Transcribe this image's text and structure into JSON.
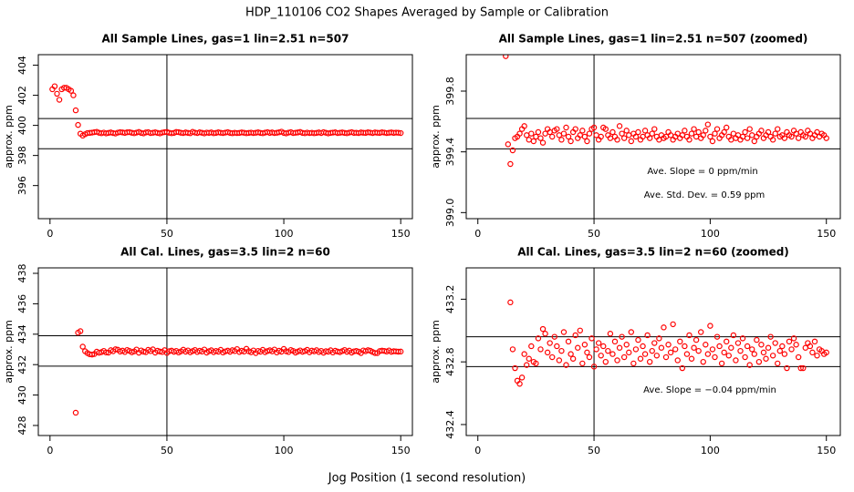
{
  "title": "HDP_110106  CO2 Shapes Averaged by Sample or Calibration",
  "xlabel": "Jog Position (1 second resolution)",
  "chart_data": [
    {
      "type": "scatter",
      "title": "All Sample Lines, gas=1 lin=2.51 n=507",
      "ylabel": "approx. ppm",
      "color": "#ff0000",
      "xlim": [
        -5,
        155
      ],
      "ylim": [
        393.8,
        404.7
      ],
      "xticks": [
        0,
        50,
        100,
        150
      ],
      "yticks": [
        396,
        398,
        400,
        402,
        404
      ],
      "hlines": [
        400.45,
        398.45
      ],
      "vlines": [
        50
      ],
      "annotations": [],
      "x": [
        1,
        2,
        3,
        4,
        5,
        6,
        7,
        8,
        9,
        10,
        11,
        12,
        13,
        14,
        15,
        16,
        17,
        18,
        19,
        20,
        21,
        22,
        23,
        24,
        25,
        26,
        27,
        28,
        29,
        30,
        31,
        32,
        33,
        34,
        35,
        36,
        37,
        38,
        39,
        40,
        41,
        42,
        43,
        44,
        45,
        46,
        47,
        48,
        49,
        50,
        51,
        52,
        53,
        54,
        55,
        56,
        57,
        58,
        59,
        60,
        61,
        62,
        63,
        64,
        65,
        66,
        67,
        68,
        69,
        70,
        71,
        72,
        73,
        74,
        75,
        76,
        77,
        78,
        79,
        80,
        81,
        82,
        83,
        84,
        85,
        86,
        87,
        88,
        89,
        90,
        91,
        92,
        93,
        94,
        95,
        96,
        97,
        98,
        99,
        100,
        101,
        102,
        103,
        104,
        105,
        106,
        107,
        108,
        109,
        110,
        111,
        112,
        113,
        114,
        115,
        116,
        117,
        118,
        119,
        120,
        121,
        122,
        123,
        124,
        125,
        126,
        127,
        128,
        129,
        130,
        131,
        132,
        133,
        134,
        135,
        136,
        137,
        138,
        139,
        140,
        141,
        142,
        143,
        144,
        145,
        146,
        147,
        148,
        149,
        150
      ],
      "values": [
        402.4,
        402.6,
        402.1,
        401.7,
        402.4,
        402.5,
        402.5,
        402.4,
        402.3,
        402.0,
        401.0,
        400.03,
        399.45,
        399.32,
        399.41,
        399.49,
        399.5,
        399.52,
        399.55,
        399.57,
        399.51,
        399.48,
        399.52,
        399.47,
        399.5,
        399.53,
        399.49,
        399.46,
        399.52,
        399.55,
        399.53,
        399.5,
        399.54,
        399.55,
        399.51,
        399.48,
        399.52,
        399.56,
        399.5,
        399.47,
        399.53,
        399.55,
        399.49,
        399.51,
        399.54,
        399.5,
        399.47,
        399.52,
        399.55,
        399.56,
        399.51,
        399.48,
        399.5,
        399.56,
        399.55,
        399.51,
        399.49,
        399.53,
        399.5,
        399.48,
        399.57,
        399.52,
        399.49,
        399.54,
        399.51,
        399.47,
        399.52,
        399.5,
        399.53,
        399.48,
        399.5,
        399.54,
        399.51,
        399.49,
        399.52,
        399.55,
        399.5,
        399.48,
        399.51,
        399.49,
        399.5,
        399.53,
        399.51,
        399.48,
        399.5,
        399.52,
        399.49,
        399.51,
        399.54,
        399.5,
        399.48,
        399.52,
        399.55,
        399.5,
        399.53,
        399.49,
        399.51,
        399.54,
        399.58,
        399.5,
        399.47,
        399.52,
        399.55,
        399.49,
        399.51,
        399.53,
        399.56,
        399.5,
        399.48,
        399.52,
        399.49,
        399.51,
        399.48,
        399.5,
        399.53,
        399.49,
        399.55,
        399.51,
        399.47,
        399.5,
        399.52,
        399.54,
        399.49,
        399.51,
        399.53,
        399.5,
        399.48,
        399.52,
        399.55,
        399.5,
        399.51,
        399.49,
        399.53,
        399.51,
        399.5,
        399.54,
        399.52,
        399.49,
        399.53,
        399.51,
        399.5,
        399.54,
        399.52,
        399.49,
        399.51,
        399.53,
        399.5,
        399.52,
        399.51,
        399.49
      ]
    },
    {
      "type": "scatter",
      "title": "All Sample Lines, gas=1 lin=2.51 n=507 (zoomed)",
      "ylabel": "approx. ppm",
      "color": "#ff0000",
      "xlim": [
        -5,
        156
      ],
      "ylim": [
        398.96,
        400.04
      ],
      "xticks": [
        0,
        50,
        100,
        150
      ],
      "yticks": [
        {
          "value": 399,
          "label": "399.0"
        },
        399.4,
        399.8
      ],
      "hlines": [
        399.62,
        399.42
      ],
      "vlines": [
        50
      ],
      "annotations": [
        "Ave. Slope =  0  ppm/min",
        "Ave. Std. Dev. =  0.59  ppm"
      ],
      "x": [
        12,
        13,
        14,
        15,
        16,
        17,
        18,
        19,
        20,
        21,
        22,
        23,
        24,
        25,
        26,
        27,
        28,
        29,
        30,
        31,
        32,
        33,
        34,
        35,
        36,
        37,
        38,
        39,
        40,
        41,
        42,
        43,
        44,
        45,
        46,
        47,
        48,
        49,
        50,
        51,
        52,
        53,
        54,
        55,
        56,
        57,
        58,
        59,
        60,
        61,
        62,
        63,
        64,
        65,
        66,
        67,
        68,
        69,
        70,
        71,
        72,
        73,
        74,
        75,
        76,
        77,
        78,
        79,
        80,
        81,
        82,
        83,
        84,
        85,
        86,
        87,
        88,
        89,
        90,
        91,
        92,
        93,
        94,
        95,
        96,
        97,
        98,
        99,
        100,
        101,
        102,
        103,
        104,
        105,
        106,
        107,
        108,
        109,
        110,
        111,
        112,
        113,
        114,
        115,
        116,
        117,
        118,
        119,
        120,
        121,
        122,
        123,
        124,
        125,
        126,
        127,
        128,
        129,
        130,
        131,
        132,
        133,
        134,
        135,
        136,
        137,
        138,
        139,
        140,
        141,
        142,
        143,
        144,
        145,
        146,
        147,
        148,
        149,
        150
      ],
      "values": [
        400.03,
        399.45,
        399.32,
        399.41,
        399.49,
        399.5,
        399.52,
        399.55,
        399.57,
        399.51,
        399.48,
        399.52,
        399.47,
        399.5,
        399.53,
        399.49,
        399.46,
        399.52,
        399.55,
        399.53,
        399.5,
        399.54,
        399.55,
        399.51,
        399.48,
        399.52,
        399.56,
        399.5,
        399.47,
        399.53,
        399.55,
        399.49,
        399.51,
        399.54,
        399.5,
        399.47,
        399.52,
        399.55,
        399.56,
        399.51,
        399.48,
        399.5,
        399.56,
        399.55,
        399.51,
        399.49,
        399.53,
        399.5,
        399.48,
        399.57,
        399.52,
        399.49,
        399.54,
        399.51,
        399.47,
        399.52,
        399.5,
        399.53,
        399.48,
        399.5,
        399.54,
        399.51,
        399.49,
        399.52,
        399.55,
        399.5,
        399.48,
        399.51,
        399.49,
        399.5,
        399.53,
        399.51,
        399.48,
        399.5,
        399.52,
        399.49,
        399.51,
        399.54,
        399.5,
        399.48,
        399.52,
        399.55,
        399.5,
        399.53,
        399.49,
        399.51,
        399.54,
        399.58,
        399.5,
        399.47,
        399.52,
        399.55,
        399.49,
        399.51,
        399.53,
        399.56,
        399.5,
        399.48,
        399.52,
        399.49,
        399.51,
        399.48,
        399.5,
        399.53,
        399.49,
        399.55,
        399.51,
        399.47,
        399.5,
        399.52,
        399.54,
        399.49,
        399.51,
        399.53,
        399.5,
        399.48,
        399.52,
        399.55,
        399.5,
        399.51,
        399.49,
        399.53,
        399.51,
        399.5,
        399.54,
        399.52,
        399.49,
        399.53,
        399.51,
        399.5,
        399.54,
        399.52,
        399.49,
        399.51,
        399.53,
        399.5,
        399.52,
        399.51,
        399.49
      ]
    },
    {
      "type": "scatter",
      "title": "All Cal. Lines, gas=3.5 lin=2 n=60",
      "ylabel": "approx. ppm",
      "color": "#ff0000",
      "xlim": [
        -5,
        155
      ],
      "ylim": [
        427.34,
        438.36
      ],
      "xticks": [
        0,
        50,
        100,
        150
      ],
      "yticks": [
        428,
        430,
        432,
        434,
        436,
        438
      ],
      "hlines": [
        433.9,
        431.9
      ],
      "vlines": [
        50
      ],
      "annotations": [],
      "x": [
        11,
        12,
        13,
        14,
        15,
        16,
        17,
        18,
        19,
        20,
        21,
        22,
        23,
        24,
        25,
        26,
        27,
        28,
        29,
        30,
        31,
        32,
        33,
        34,
        35,
        36,
        37,
        38,
        39,
        40,
        41,
        42,
        43,
        44,
        45,
        46,
        47,
        48,
        49,
        50,
        51,
        52,
        53,
        54,
        55,
        56,
        57,
        58,
        59,
        60,
        61,
        62,
        63,
        64,
        65,
        66,
        67,
        68,
        69,
        70,
        71,
        72,
        73,
        74,
        75,
        76,
        77,
        78,
        79,
        80,
        81,
        82,
        83,
        84,
        85,
        86,
        87,
        88,
        89,
        90,
        91,
        92,
        93,
        94,
        95,
        96,
        97,
        98,
        99,
        100,
        101,
        102,
        103,
        104,
        105,
        106,
        107,
        108,
        109,
        110,
        111,
        112,
        113,
        114,
        115,
        116,
        117,
        118,
        119,
        120,
        121,
        122,
        123,
        124,
        125,
        126,
        127,
        128,
        129,
        130,
        131,
        132,
        133,
        134,
        135,
        136,
        137,
        138,
        139,
        140,
        141,
        142,
        143,
        144,
        145,
        146,
        147,
        148,
        149,
        150
      ],
      "values": [
        428.84,
        434.1,
        434.2,
        433.18,
        432.88,
        432.76,
        432.68,
        432.66,
        432.7,
        432.85,
        432.78,
        432.82,
        432.9,
        432.8,
        432.79,
        432.95,
        432.88,
        433.01,
        432.98,
        432.86,
        432.92,
        432.83,
        432.96,
        432.9,
        432.81,
        432.87,
        432.99,
        432.78,
        432.93,
        432.85,
        432.82,
        432.97,
        432.89,
        433.0,
        432.79,
        432.91,
        432.86,
        432.83,
        432.95,
        432.77,
        432.88,
        432.92,
        432.84,
        432.9,
        432.8,
        432.87,
        432.98,
        432.85,
        432.93,
        432.81,
        432.89,
        432.96,
        432.83,
        432.91,
        432.86,
        432.99,
        432.79,
        432.88,
        432.94,
        432.82,
        432.9,
        432.85,
        432.97,
        432.8,
        432.87,
        432.92,
        432.84,
        432.95,
        432.89,
        433.02,
        432.83,
        432.91,
        432.86,
        433.04,
        432.88,
        432.81,
        432.93,
        432.76,
        432.9,
        432.85,
        432.97,
        432.82,
        432.89,
        432.94,
        432.87,
        432.99,
        432.8,
        432.91,
        432.85,
        433.03,
        432.88,
        432.83,
        432.96,
        432.9,
        432.79,
        432.86,
        432.93,
        432.84,
        432.89,
        432.97,
        432.81,
        432.92,
        432.87,
        432.95,
        432.83,
        432.9,
        432.78,
        432.88,
        432.85,
        432.94,
        432.8,
        432.91,
        432.86,
        432.82,
        432.89,
        432.96,
        432.84,
        432.92,
        432.79,
        432.87,
        432.9,
        432.85,
        432.76,
        432.93,
        432.88,
        432.95,
        432.91,
        432.83,
        432.76,
        432.76,
        432.89,
        432.92,
        432.9,
        432.86,
        432.93,
        432.84,
        432.88,
        432.87,
        432.85,
        432.86
      ]
    },
    {
      "type": "scatter",
      "title": "All Cal. Lines, gas=3.5 lin=2 n=60 (zoomed)",
      "ylabel": "approx. ppm",
      "color": "#ff0000",
      "xlim": [
        -5,
        156
      ],
      "ylim": [
        432.33,
        433.4
      ],
      "xticks": [
        0,
        50,
        100,
        150
      ],
      "yticks": [
        432.4,
        432.8,
        433.2
      ],
      "hlines": [
        432.96,
        432.77
      ],
      "vlines": [
        50
      ],
      "annotations": [
        "Ave. Slope =  −0.04  ppm/min"
      ],
      "x": [
        14,
        15,
        16,
        17,
        18,
        19,
        20,
        21,
        22,
        23,
        24,
        25,
        26,
        27,
        28,
        29,
        30,
        31,
        32,
        33,
        34,
        35,
        36,
        37,
        38,
        39,
        40,
        41,
        42,
        43,
        44,
        45,
        46,
        47,
        48,
        49,
        50,
        51,
        52,
        53,
        54,
        55,
        56,
        57,
        58,
        59,
        60,
        61,
        62,
        63,
        64,
        65,
        66,
        67,
        68,
        69,
        70,
        71,
        72,
        73,
        74,
        75,
        76,
        77,
        78,
        79,
        80,
        81,
        82,
        83,
        84,
        85,
        86,
        87,
        88,
        89,
        90,
        91,
        92,
        93,
        94,
        95,
        96,
        97,
        98,
        99,
        100,
        101,
        102,
        103,
        104,
        105,
        106,
        107,
        108,
        109,
        110,
        111,
        112,
        113,
        114,
        115,
        116,
        117,
        118,
        119,
        120,
        121,
        122,
        123,
        124,
        125,
        126,
        127,
        128,
        129,
        130,
        131,
        132,
        133,
        134,
        135,
        136,
        137,
        138,
        139,
        140,
        141,
        142,
        143,
        144,
        145,
        146,
        147,
        148,
        149,
        150
      ],
      "values": [
        433.18,
        432.88,
        432.76,
        432.68,
        432.66,
        432.7,
        432.85,
        432.78,
        432.82,
        432.9,
        432.8,
        432.79,
        432.95,
        432.88,
        433.01,
        432.98,
        432.86,
        432.92,
        432.83,
        432.96,
        432.9,
        432.81,
        432.87,
        432.99,
        432.78,
        432.93,
        432.85,
        432.82,
        432.97,
        432.89,
        433.0,
        432.79,
        432.91,
        432.86,
        432.83,
        432.95,
        432.77,
        432.88,
        432.92,
        432.84,
        432.9,
        432.8,
        432.87,
        432.98,
        432.85,
        432.93,
        432.81,
        432.89,
        432.96,
        432.83,
        432.91,
        432.86,
        432.99,
        432.79,
        432.88,
        432.94,
        432.82,
        432.9,
        432.85,
        432.97,
        432.8,
        432.87,
        432.92,
        432.84,
        432.95,
        432.89,
        433.02,
        432.83,
        432.91,
        432.86,
        433.04,
        432.88,
        432.81,
        432.93,
        432.76,
        432.9,
        432.85,
        432.97,
        432.82,
        432.89,
        432.94,
        432.87,
        432.99,
        432.8,
        432.91,
        432.85,
        433.03,
        432.88,
        432.83,
        432.96,
        432.9,
        432.79,
        432.86,
        432.93,
        432.84,
        432.89,
        432.97,
        432.81,
        432.92,
        432.87,
        432.95,
        432.83,
        432.9,
        432.78,
        432.88,
        432.85,
        432.94,
        432.8,
        432.91,
        432.86,
        432.82,
        432.89,
        432.96,
        432.84,
        432.92,
        432.79,
        432.87,
        432.9,
        432.85,
        432.76,
        432.93,
        432.88,
        432.95,
        432.91,
        432.83,
        432.76,
        432.76,
        432.89,
        432.92,
        432.9,
        432.86,
        432.93,
        432.84,
        432.88,
        432.87,
        432.85,
        432.86
      ]
    }
  ]
}
